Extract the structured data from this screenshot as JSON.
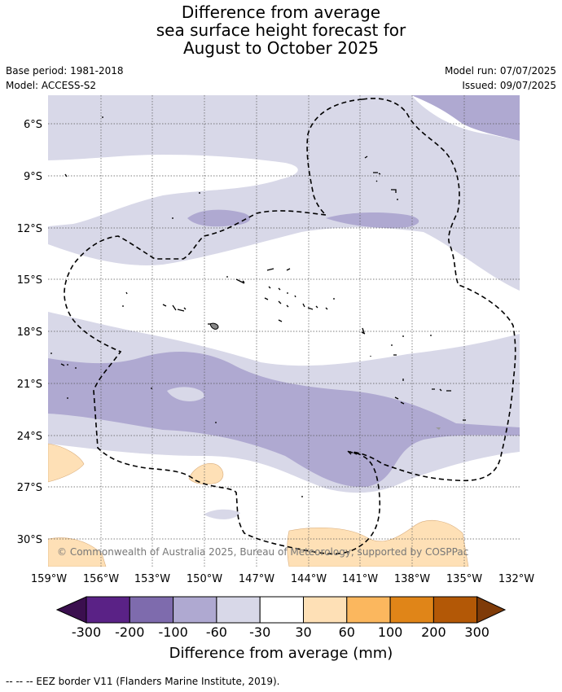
{
  "title": {
    "line1": "Difference from average",
    "line2": "sea surface height forecast for",
    "line3": "August to October 2025"
  },
  "meta": {
    "base_period": "Base period: 1981-2018",
    "model": "Model: ACCESS-S2",
    "model_run": "Model run: 07/07/2025",
    "issued": "Issued: 09/07/2025"
  },
  "map": {
    "lat_labels": [
      "6°S",
      "9°S",
      "12°S",
      "15°S",
      "18°S",
      "21°S",
      "24°S",
      "27°S",
      "30°S"
    ],
    "lon_labels": [
      "159°W",
      "156°W",
      "153°W",
      "150°W",
      "147°W",
      "144°W",
      "141°W",
      "138°W",
      "135°W",
      "132°W"
    ],
    "copyright": "© Commonwealth of Australia 2025, Bureau of Meteorology, supported by COSPPac"
  },
  "colorbar": {
    "ticks": [
      "-300",
      "-200",
      "-100",
      "-60",
      "-30",
      "30",
      "60",
      "100",
      "200",
      "300"
    ],
    "label": "Difference from average (mm)",
    "colors": {
      "under": "#3b0f4f",
      "minus300_to_200": "#5a2286",
      "minus200_to_100": "#7e6bad",
      "minus100_to_60": "#afa9d1",
      "minus60_to_30": "#d8d8e8",
      "minus30_to_30": "#ffffff",
      "plus30_to_60": "#fee0b6",
      "plus60_to_100": "#fbb75e",
      "plus100_to_200": "#e08518",
      "plus200_to_300": "#b35806",
      "over": "#7f3b08"
    }
  },
  "footnote": "--  --  -- EEZ border V11 (Flanders Marine Institute, 2019)."
}
